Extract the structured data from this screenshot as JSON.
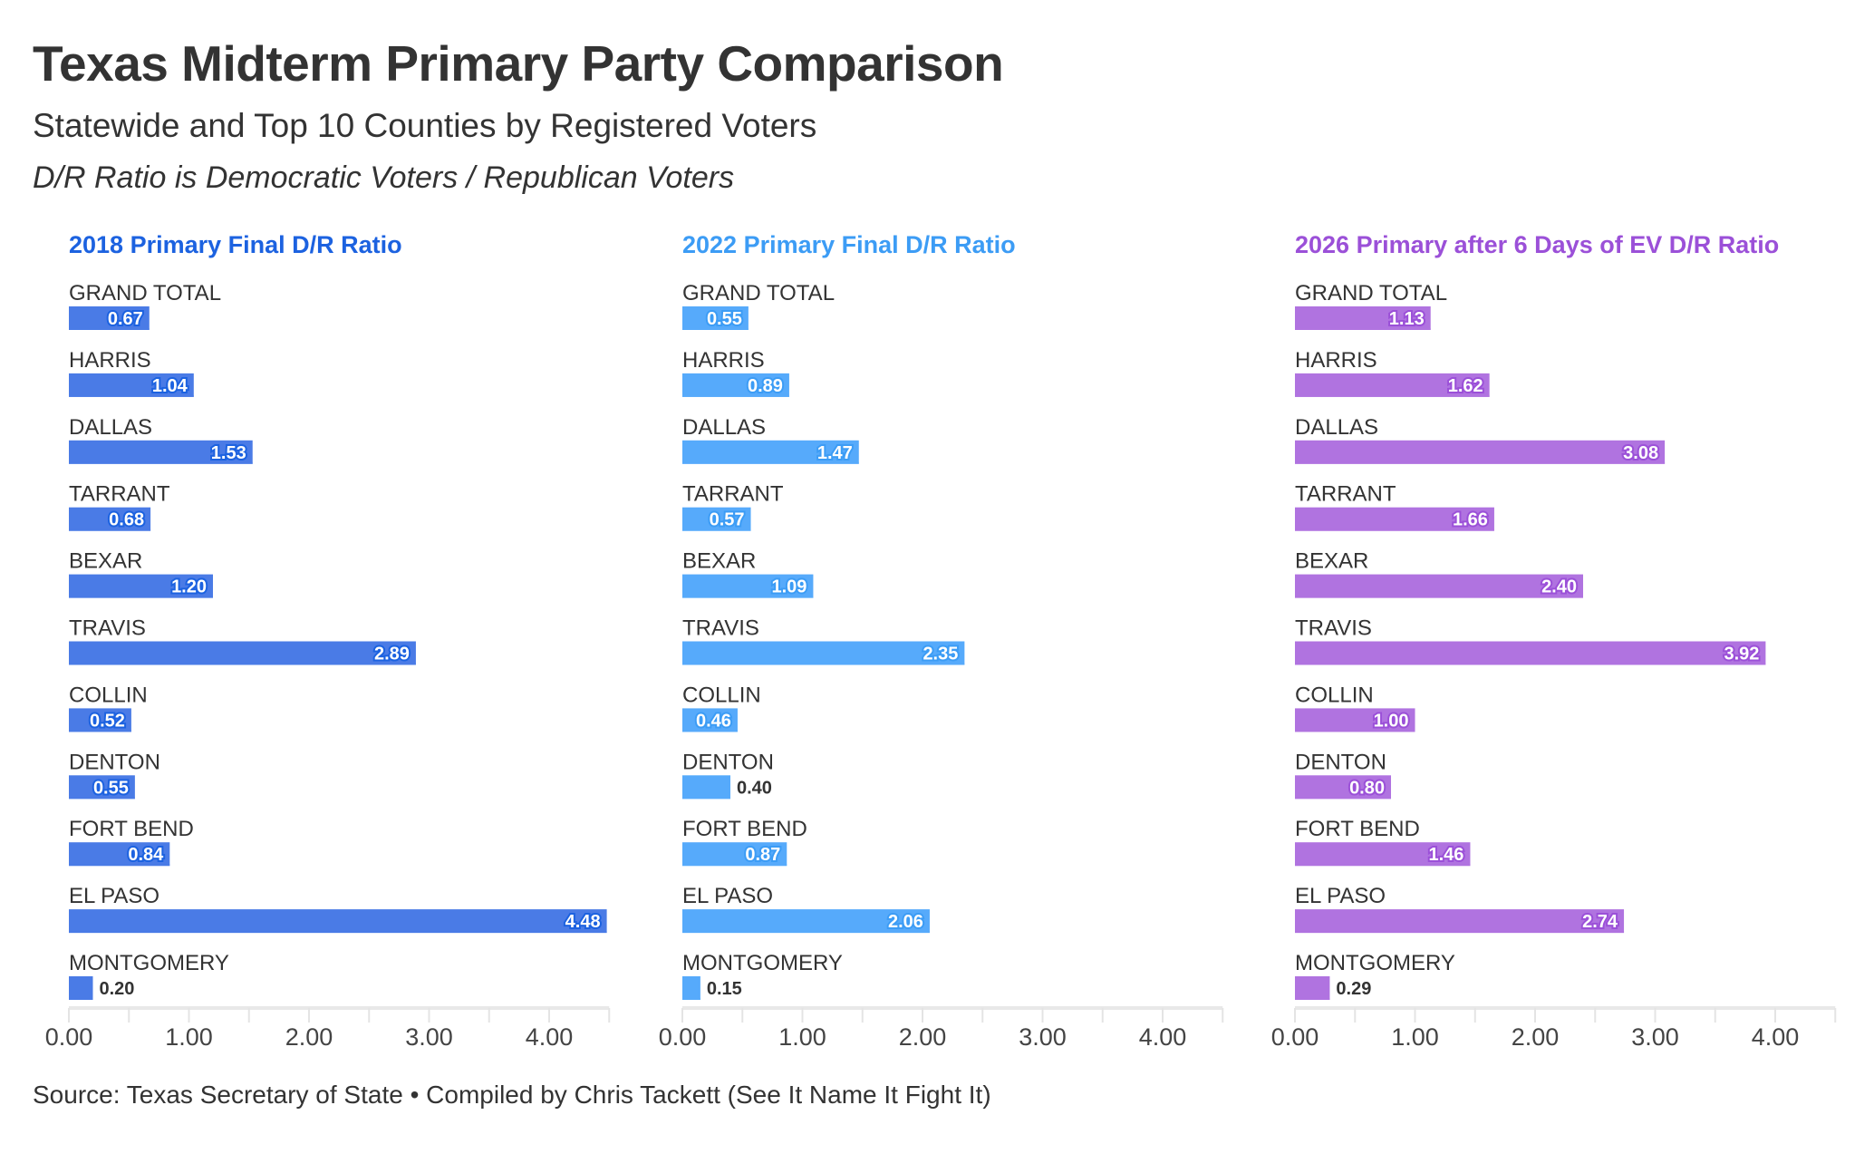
{
  "header": {
    "title": "Texas Midterm Primary Party Comparison",
    "subtitle": "Statewide and Top 10 Counties by Registered Voters",
    "note": "D/R Ratio is Democratic Voters / Republican Voters"
  },
  "footer": {
    "source": "Source: Texas Secretary of State • Compiled by Chris Tackett (See It Name It Fight It)"
  },
  "chart_data": [
    {
      "type": "bar",
      "title": "2018 Primary Final D/R Ratio",
      "color": "#4a7be6",
      "title_color": "#1c62e0",
      "categories": [
        "GRAND TOTAL",
        "HARRIS",
        "DALLAS",
        "TARRANT",
        "BEXAR",
        "TRAVIS",
        "COLLIN",
        "DENTON",
        "FORT BEND",
        "EL PASO",
        "MONTGOMERY"
      ],
      "values": [
        0.67,
        1.04,
        1.53,
        0.68,
        1.2,
        2.89,
        0.52,
        0.55,
        0.84,
        4.48,
        0.2
      ],
      "xlim": [
        0,
        4.5
      ],
      "ticks": [
        "0.00",
        "1.00",
        "2.00",
        "3.00",
        "4.00"
      ]
    },
    {
      "type": "bar",
      "title": "2022 Primary Final D/R Ratio",
      "color": "#56aafb",
      "title_color": "#3c9cf5",
      "categories": [
        "GRAND TOTAL",
        "HARRIS",
        "DALLAS",
        "TARRANT",
        "BEXAR",
        "TRAVIS",
        "COLLIN",
        "DENTON",
        "FORT BEND",
        "EL PASO",
        "MONTGOMERY"
      ],
      "values": [
        0.55,
        0.89,
        1.47,
        0.57,
        1.09,
        2.35,
        0.46,
        0.4,
        0.87,
        2.06,
        0.15
      ],
      "xlim": [
        0,
        4.5
      ],
      "ticks": [
        "0.00",
        "1.00",
        "2.00",
        "3.00",
        "4.00"
      ]
    },
    {
      "type": "bar",
      "title": "2026 Primary after 6 Days of EV D/R Ratio",
      "color": "#b073e0",
      "title_color": "#9b50d8",
      "categories": [
        "GRAND TOTAL",
        "HARRIS",
        "DALLAS",
        "TARRANT",
        "BEXAR",
        "TRAVIS",
        "COLLIN",
        "DENTON",
        "FORT BEND",
        "EL PASO",
        "MONTGOMERY"
      ],
      "values": [
        1.13,
        1.62,
        3.08,
        1.66,
        2.4,
        3.92,
        1.0,
        0.8,
        1.46,
        2.74,
        0.29
      ],
      "xlim": [
        0,
        4.5
      ],
      "ticks": [
        "0.00",
        "1.00",
        "2.00",
        "3.00",
        "4.00"
      ]
    }
  ]
}
